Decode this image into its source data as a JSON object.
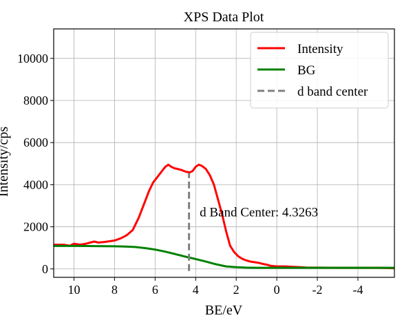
{
  "chart_data": {
    "type": "line",
    "title": "XPS Data Plot",
    "xlabel": "BE/eV",
    "ylabel": "Intensity/cps",
    "xlim": [
      11.0,
      -5.8
    ],
    "ylim": [
      -400,
      11400
    ],
    "x_ticks": [
      10,
      8,
      6,
      4,
      2,
      0,
      -2,
      -4
    ],
    "x_tick_labels": [
      "10",
      "8",
      "6",
      "4",
      "2",
      "0",
      "-2",
      "-4"
    ],
    "y_ticks": [
      0,
      2000,
      4000,
      6000,
      8000,
      10000
    ],
    "y_tick_labels": [
      "0",
      "2000",
      "4000",
      "6000",
      "8000",
      "10000"
    ],
    "grid": true,
    "legend_position": "top-right",
    "series": [
      {
        "name": "Intensity",
        "color": "#ff0000",
        "style": "solid",
        "x": [
          11.0,
          10.5,
          10.2,
          10.0,
          9.7,
          9.4,
          9.2,
          9.0,
          8.8,
          8.5,
          8.2,
          8.0,
          7.7,
          7.4,
          7.1,
          6.8,
          6.5,
          6.3,
          6.1,
          5.9,
          5.7,
          5.5,
          5.35,
          5.2,
          5.05,
          4.9,
          4.7,
          4.5,
          4.3,
          4.15,
          4.0,
          3.85,
          3.7,
          3.5,
          3.3,
          3.1,
          2.9,
          2.7,
          2.5,
          2.3,
          2.1,
          1.9,
          1.7,
          1.5,
          1.3,
          1.1,
          0.9,
          0.7,
          0.5,
          0.3,
          0.0,
          -0.4,
          -0.8,
          -1.2,
          -1.5,
          -2.0,
          -3.0,
          -4.0,
          -5.0,
          -5.8
        ],
        "values": [
          1150,
          1150,
          1100,
          1200,
          1150,
          1200,
          1250,
          1300,
          1250,
          1280,
          1320,
          1350,
          1450,
          1600,
          1850,
          2450,
          3200,
          3700,
          4100,
          4350,
          4600,
          4850,
          4950,
          4850,
          4780,
          4750,
          4700,
          4620,
          4580,
          4650,
          4850,
          4950,
          4900,
          4750,
          4450,
          4000,
          3300,
          2600,
          1800,
          1100,
          800,
          600,
          480,
          400,
          350,
          320,
          290,
          240,
          200,
          150,
          120,
          120,
          100,
          80,
          60,
          60,
          55,
          55,
          55,
          30
        ]
      },
      {
        "name": "BG",
        "color": "#008000",
        "style": "solid",
        "x": [
          11.0,
          10.0,
          9.0,
          8.0,
          7.5,
          7.0,
          6.5,
          6.0,
          5.5,
          5.0,
          4.5,
          4.0,
          3.5,
          3.0,
          2.5,
          2.0,
          1.5,
          1.0,
          0.0,
          -1.0,
          -2.0,
          -3.0,
          -4.0,
          -5.0,
          -5.8
        ],
        "values": [
          1090,
          1090,
          1085,
          1075,
          1065,
          1040,
          990,
          920,
          820,
          700,
          580,
          470,
          350,
          220,
          120,
          80,
          60,
          55,
          55,
          55,
          55,
          55,
          55,
          55,
          55
        ]
      },
      {
        "name": "d band center",
        "color": "#808080",
        "style": "dashed",
        "x": [
          4.3263,
          4.3263
        ],
        "values": [
          -100,
          4550
        ]
      }
    ],
    "annotations": [
      {
        "text": "d Band Center: 4.3263",
        "x": 3.8,
        "y": 2500
      }
    ]
  }
}
